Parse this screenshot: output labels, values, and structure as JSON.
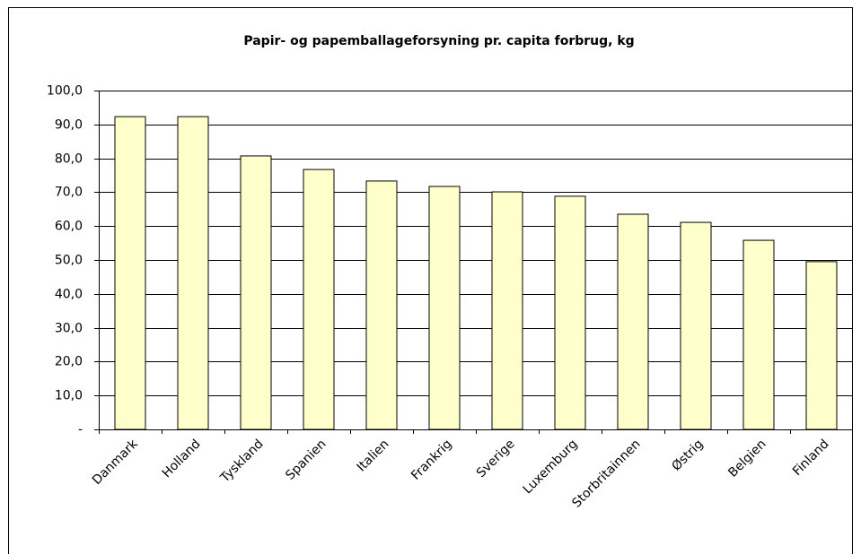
{
  "chart_data": {
    "type": "bar",
    "title": "Papir- og papemballageforsyning pr. capita forbrug, kg",
    "categories": [
      "Danmark",
      "Holland",
      "Tyskland",
      "Spanien",
      "Italien",
      "Frankrig",
      "Sverige",
      "Luxemburg",
      "Storbritainnen",
      "Østrig",
      "Belgien",
      "Finland"
    ],
    "values": [
      92.3,
      92.3,
      80.7,
      76.7,
      73.3,
      71.7,
      70.1,
      68.8,
      63.5,
      61.1,
      55.8,
      49.5
    ],
    "color": "#ffffcc",
    "ylim": [
      0,
      100
    ],
    "yticks": [
      {
        "value": 0,
        "label": "-"
      },
      {
        "value": 10,
        "label": "10,0"
      },
      {
        "value": 20,
        "label": "20,0"
      },
      {
        "value": 30,
        "label": "30,0"
      },
      {
        "value": 40,
        "label": "40,0"
      },
      {
        "value": 50,
        "label": "50,0"
      },
      {
        "value": 60,
        "label": "60,0"
      },
      {
        "value": 70,
        "label": "70,0"
      },
      {
        "value": 80,
        "label": "80,0"
      },
      {
        "value": 90,
        "label": "90,0"
      },
      {
        "value": 100,
        "label": "100,0"
      }
    ],
    "grid": true
  }
}
